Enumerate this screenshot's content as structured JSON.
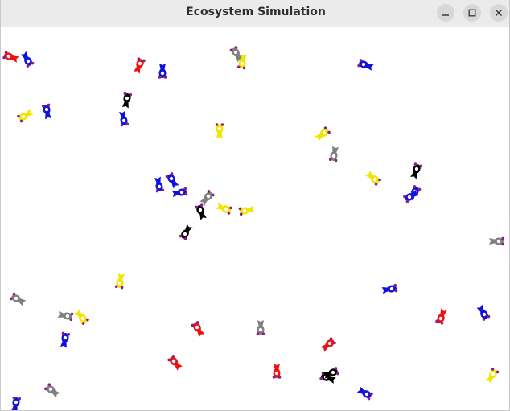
{
  "window": {
    "title": "Ecosystem Simulation",
    "controls": {
      "minimize": "minimize-icon",
      "maximize": "maximize-icon",
      "close": "close-icon"
    }
  },
  "palette": {
    "red": "#ee1111",
    "blue": "#1111dd",
    "yellow": "#f2e600",
    "gray": "#808080",
    "black": "#000000",
    "eye": "#8b1e8b",
    "titlebar": "#ebebeb"
  }
}
